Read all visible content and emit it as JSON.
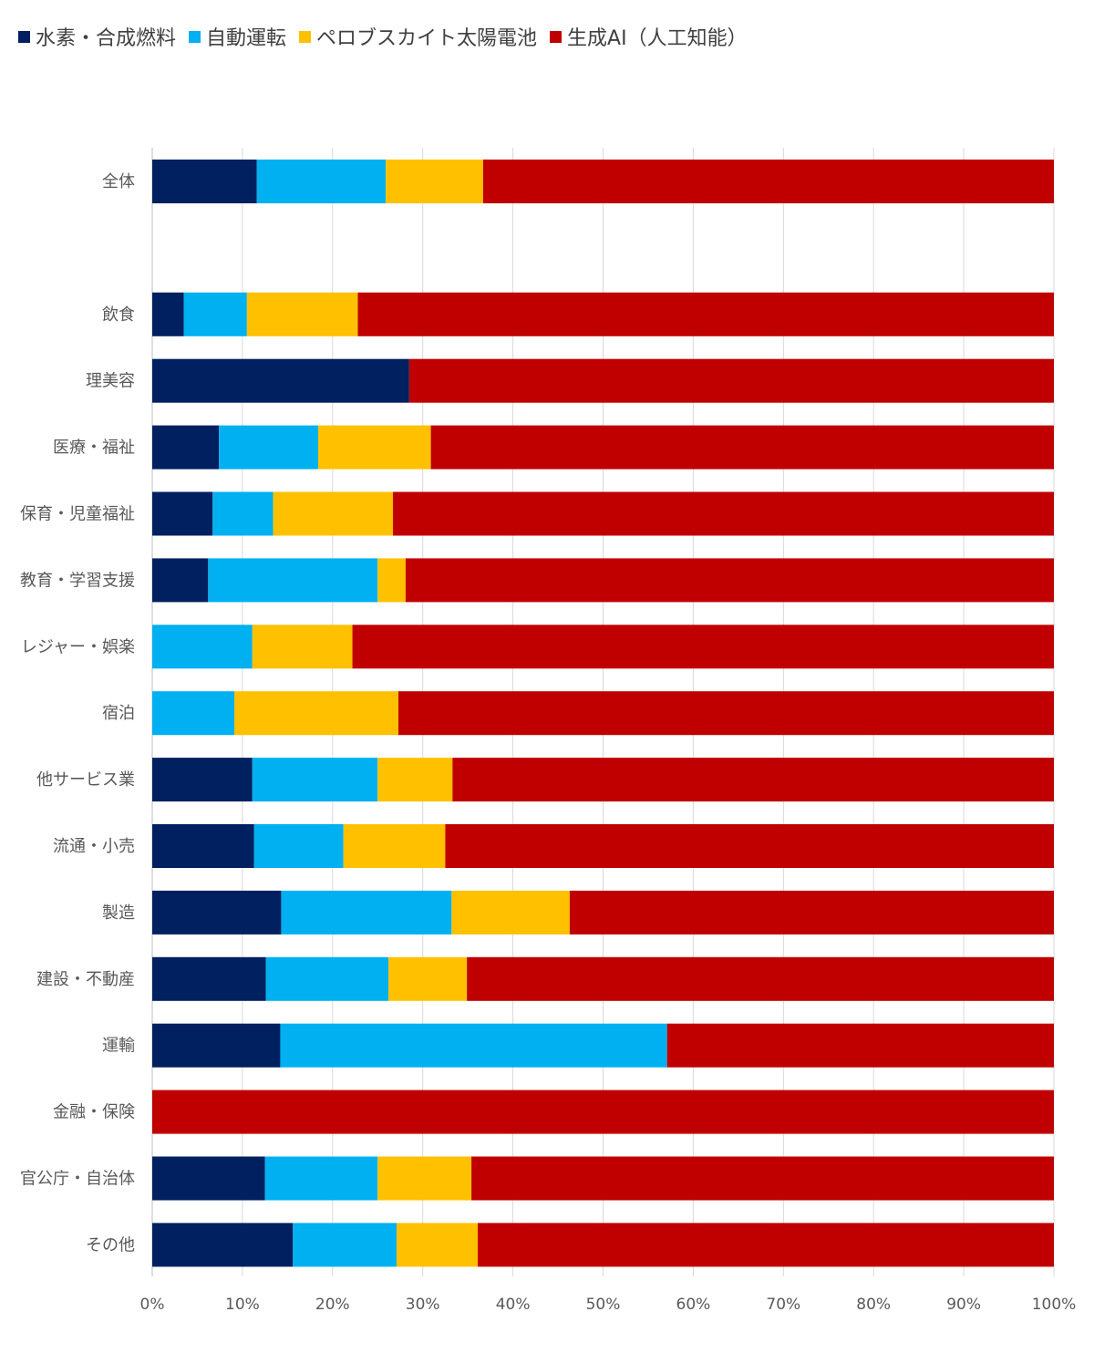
{
  "chart_data": {
    "type": "bar",
    "orientation": "horizontal",
    "stacked": "percent",
    "title": "",
    "xlabel": "",
    "ylabel": "",
    "xlim": [
      0,
      100
    ],
    "x_ticks": [
      "0%",
      "10%",
      "20%",
      "30%",
      "40%",
      "50%",
      "60%",
      "70%",
      "80%",
      "90%",
      "100%"
    ],
    "grid": "vertical",
    "legend_position": "top-left",
    "categories": [
      "全体",
      "",
      "飲食",
      "理美容",
      "医療・福祉",
      "保育・児童福祉",
      "教育・学習支援",
      "レジャー・娯楽",
      "宿泊",
      "他サービス業",
      "流通・小売",
      "製造",
      "建設・不動産",
      "運輸",
      "金融・保険",
      "官公庁・自治体",
      "その他"
    ],
    "series": [
      {
        "name": "水素・合成燃料",
        "color": "#002060",
        "values": [
          11.6,
          null,
          3.5,
          28.5,
          7.4,
          6.7,
          6.2,
          0,
          0,
          11.1,
          11.3,
          14.3,
          12.6,
          14.2,
          0,
          12.5,
          15.6
        ]
      },
      {
        "name": "自動運転",
        "color": "#00B0F0",
        "values": [
          14.3,
          null,
          7.0,
          0,
          11.0,
          6.7,
          18.8,
          11.1,
          9.1,
          13.9,
          9.9,
          18.9,
          13.6,
          42.9,
          0,
          12.5,
          11.5
        ]
      },
      {
        "name": "ペロブスカイト太陽電池",
        "color": "#FFC000",
        "values": [
          10.8,
          null,
          12.3,
          0,
          12.5,
          13.3,
          3.1,
          11.1,
          18.2,
          8.3,
          11.3,
          13.1,
          8.7,
          0,
          0,
          10.4,
          9.0
        ]
      },
      {
        "name": "生成AI（人工知能）",
        "color": "#C00000",
        "values": [
          63.3,
          null,
          77.2,
          71.5,
          69.1,
          73.3,
          71.9,
          77.8,
          72.7,
          66.7,
          67.5,
          53.7,
          65.1,
          42.9,
          100,
          64.6,
          63.9
        ]
      }
    ]
  }
}
